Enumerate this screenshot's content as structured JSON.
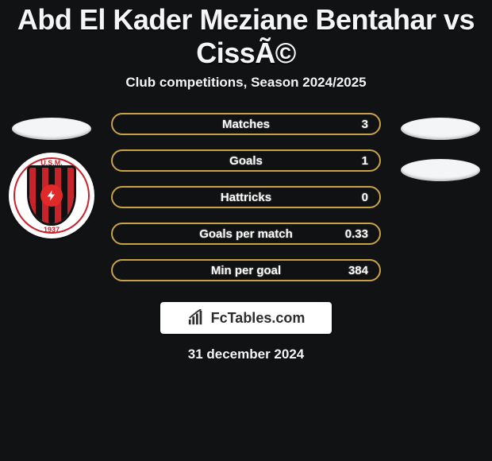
{
  "title": "Abd El Kader Meziane Bentahar vs CissÃ©",
  "subtitle": "Club competitions, Season 2024/2025",
  "row_border_color": "#c8a24a",
  "badge": {
    "primary": "#c8222a",
    "ring_top": "U.S.M.",
    "ring_bottom_year": "1937",
    "stripe_colors": [
      "#c8222a",
      "#111111",
      "#c8222a",
      "#111111",
      "#c8222a",
      "#111111",
      "#c8222a"
    ]
  },
  "stats": [
    {
      "label": "Matches",
      "value": "3"
    },
    {
      "label": "Goals",
      "value": "1"
    },
    {
      "label": "Hattricks",
      "value": "0"
    },
    {
      "label": "Goals per match",
      "value": "0.33"
    },
    {
      "label": "Min per goal",
      "value": "384"
    }
  ],
  "brand": "FcTables.com",
  "date": "31 december 2024"
}
